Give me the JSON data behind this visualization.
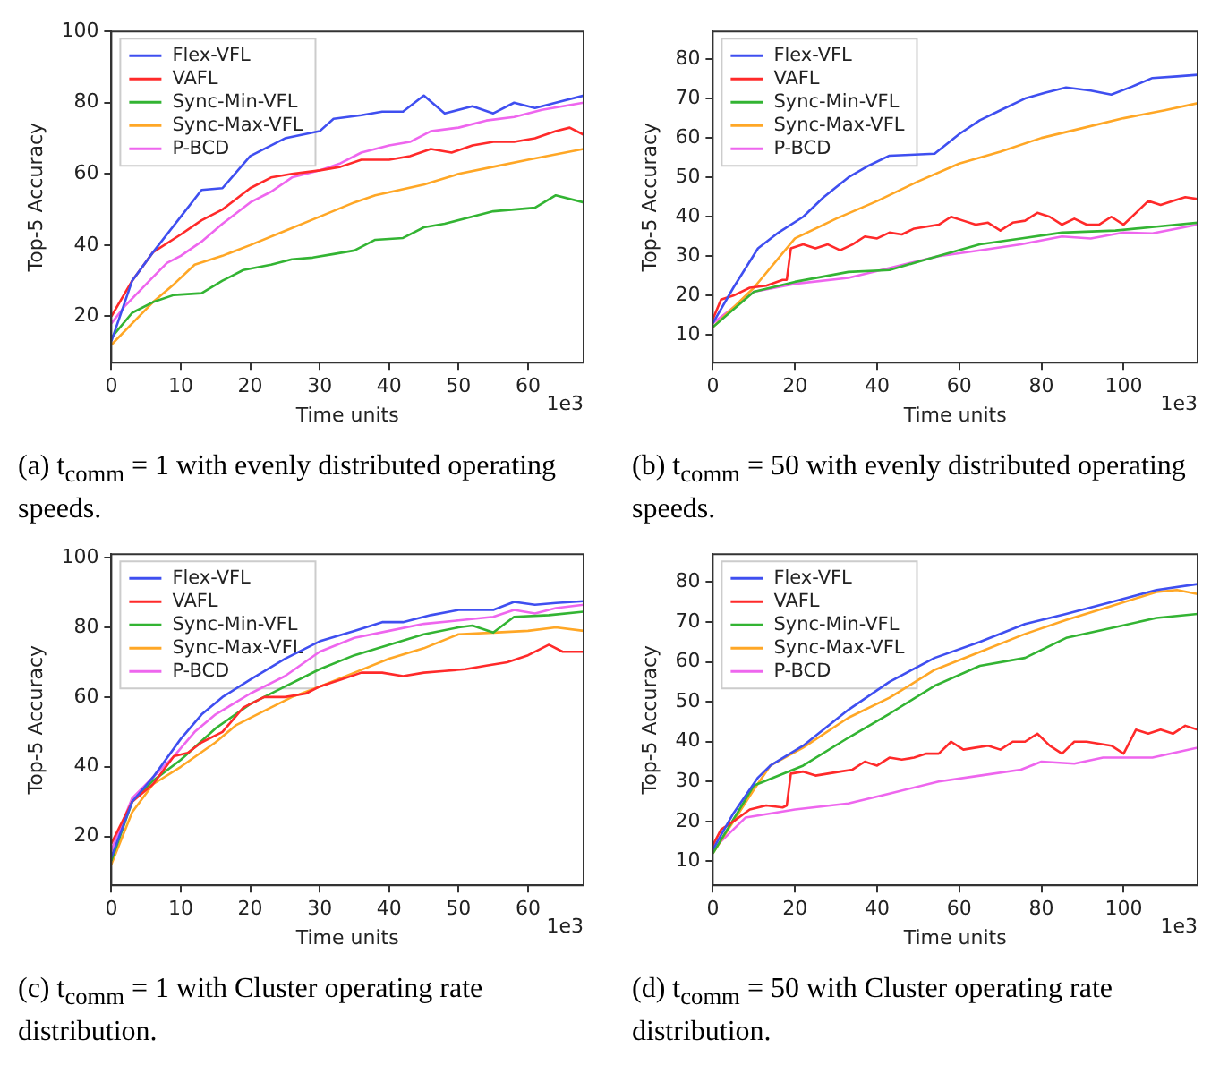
{
  "chart_data": [
    {
      "type": "line",
      "xlabel": "Time units",
      "ylabel": "Top-5 Accuracy",
      "annotations": [
        "1e3",
        "(a) t$_{comm}$ = 1 with evenly distributed operating speeds."
      ],
      "xlim": [
        0,
        68
      ],
      "xticks": [
        0,
        10,
        20,
        30,
        40,
        50,
        60
      ],
      "ylim": [
        7,
        100
      ],
      "yticks": [
        20,
        40,
        60,
        80,
        100
      ],
      "legend": "top left",
      "grid": false,
      "series": [
        {
          "name": "Flex-VFL",
          "color": "#3f4ff0",
          "x": [
            0,
            3,
            6,
            10,
            13,
            16,
            20,
            25,
            30,
            32,
            36,
            39,
            42,
            45,
            48,
            52,
            55,
            58,
            61,
            64,
            68
          ],
          "values": [
            13,
            30,
            38,
            48,
            55.5,
            56,
            65,
            70,
            72,
            75.5,
            76.5,
            77.5,
            77.5,
            82,
            77,
            79,
            77,
            80,
            78.5,
            80,
            82
          ]
        },
        {
          "name": "VAFL",
          "color": "#ff2a2a",
          "x": [
            0,
            3,
            6,
            10,
            13,
            16,
            20,
            23,
            26,
            30,
            33,
            36,
            40,
            43,
            46,
            49,
            52,
            55,
            58,
            61,
            64,
            66,
            68
          ],
          "values": [
            20,
            30,
            38,
            43,
            47,
            50,
            56,
            59,
            60,
            61,
            62,
            64,
            64,
            65,
            67,
            66,
            68,
            69,
            69,
            70,
            72,
            73,
            71
          ]
        },
        {
          "name": "Sync-Min-VFL",
          "color": "#33b433",
          "x": [
            0,
            3,
            6,
            9,
            13,
            16,
            19,
            23,
            26,
            29,
            32,
            35,
            38,
            42,
            45,
            48,
            51,
            55,
            58,
            61,
            64,
            68
          ],
          "values": [
            14,
            21,
            24,
            26,
            26.5,
            30,
            33,
            34.5,
            36,
            36.5,
            37.5,
            38.5,
            41.5,
            42,
            45,
            46,
            47.5,
            49.5,
            50,
            50.5,
            54,
            52
          ]
        },
        {
          "name": "Sync-Max-VFL",
          "color": "#ffa726",
          "x": [
            0,
            3,
            6,
            9,
            12,
            16,
            20,
            25,
            30,
            35,
            38,
            45,
            50,
            55,
            60,
            68
          ],
          "values": [
            12,
            18,
            24,
            29,
            34.5,
            37,
            40,
            44,
            48,
            52,
            54,
            57,
            60,
            62,
            64,
            67
          ]
        },
        {
          "name": "P-BCD",
          "color": "#ee66ee",
          "x": [
            0,
            2,
            4,
            6,
            8,
            10,
            13,
            16,
            20,
            23,
            26,
            30,
            33,
            36,
            40,
            43,
            46,
            50,
            54,
            58,
            62,
            65,
            68
          ],
          "values": [
            18,
            23,
            27,
            31,
            35,
            37,
            41,
            46,
            52,
            55,
            59,
            61,
            63,
            66,
            68,
            69,
            72,
            73,
            75,
            76,
            78,
            79,
            80
          ]
        }
      ]
    },
    {
      "type": "line",
      "xlabel": "Time units",
      "ylabel": "Top-5 Accuracy",
      "annotations": [
        "1e3",
        "(b) t$_{comm}$ = 50 with evenly distributed operating speeds."
      ],
      "xlim": [
        0,
        118
      ],
      "xticks": [
        0,
        20,
        40,
        60,
        80,
        100
      ],
      "ylim": [
        3,
        87
      ],
      "yticks": [
        10,
        20,
        30,
        40,
        50,
        60,
        70,
        80
      ],
      "legend": "top left",
      "grid": false,
      "series": [
        {
          "name": "Flex-VFL",
          "color": "#3f4ff0",
          "x": [
            0,
            5,
            11,
            16,
            22,
            27,
            33,
            38,
            43,
            48,
            54,
            60,
            65,
            70,
            76,
            81,
            86,
            92,
            97,
            102,
            107,
            113,
            118
          ],
          "values": [
            13,
            22,
            32,
            36,
            40,
            45,
            50,
            53,
            55.5,
            55.7,
            56,
            61,
            64.5,
            67,
            70,
            71.5,
            72.8,
            72,
            71,
            73,
            75.2,
            75.6,
            76
          ]
        },
        {
          "name": "VAFL",
          "color": "#ff2a2a",
          "x": [
            0,
            2,
            5,
            9,
            13,
            17,
            18,
            19,
            22,
            25,
            28,
            31,
            34,
            37,
            40,
            43,
            46,
            49,
            52,
            55,
            58,
            61,
            64,
            67,
            70,
            73,
            76,
            79,
            82,
            85,
            88,
            91,
            94,
            97,
            100,
            103,
            106,
            109,
            112,
            115,
            118
          ],
          "values": [
            14,
            19,
            20,
            22,
            22.5,
            24,
            24,
            32,
            33,
            32,
            33,
            31.5,
            33,
            35,
            34.5,
            36,
            35.5,
            37,
            37.5,
            38,
            40,
            39,
            38,
            38.5,
            36.5,
            38.5,
            39,
            41,
            40,
            38,
            39.5,
            38,
            38,
            40,
            38,
            41,
            44,
            43,
            44,
            45,
            44.5
          ]
        },
        {
          "name": "Sync-Min-VFL",
          "color": "#33b433",
          "x": [
            0,
            10,
            20,
            33,
            43,
            53,
            65,
            75,
            85,
            98,
            108,
            118
          ],
          "values": [
            12,
            21,
            23.5,
            26,
            26.5,
            29.5,
            33,
            34.5,
            36,
            36.5,
            37.5,
            38.5
          ]
        },
        {
          "name": "Sync-Max-VFL",
          "color": "#ffa726",
          "x": [
            0,
            10,
            20,
            30,
            40,
            50,
            60,
            70,
            80,
            90,
            100,
            110,
            118
          ],
          "values": [
            12,
            22,
            34.5,
            39.5,
            44,
            49,
            53.5,
            56.5,
            60,
            62.5,
            65,
            67,
            68.8
          ]
        },
        {
          "name": "P-BCD",
          "color": "#ee66ee",
          "x": [
            0,
            10,
            20,
            33,
            43,
            55,
            65,
            75,
            85,
            92,
            100,
            107,
            118
          ],
          "values": [
            13,
            21,
            23,
            24.5,
            27,
            30,
            31.5,
            33,
            35,
            34.5,
            36,
            35.8,
            38
          ]
        }
      ]
    },
    {
      "type": "line",
      "xlabel": "Time units",
      "ylabel": "Top-5 Accuracy",
      "annotations": [
        "1e3",
        "(c) t$_{comm}$ = 1 with Cluster operating rate distribution."
      ],
      "xlim": [
        0,
        68
      ],
      "xticks": [
        0,
        10,
        20,
        30,
        40,
        50,
        60
      ],
      "ylim": [
        6,
        101
      ],
      "yticks": [
        20,
        40,
        60,
        80,
        100
      ],
      "legend": "top left",
      "grid": false,
      "series": [
        {
          "name": "Flex-VFL",
          "color": "#3f4ff0",
          "x": [
            0,
            3,
            6,
            10,
            13,
            16,
            20,
            25,
            30,
            35,
            39,
            42,
            46,
            50,
            55,
            58,
            61,
            64,
            68
          ],
          "values": [
            14,
            30,
            37,
            48,
            55,
            60,
            65,
            71,
            76,
            79,
            81.5,
            81.5,
            83.5,
            85,
            85,
            87.3,
            86.5,
            87,
            87.5
          ]
        },
        {
          "name": "VAFL",
          "color": "#ff2a2a",
          "x": [
            0,
            3,
            6,
            9,
            11,
            13,
            16,
            19,
            22,
            25,
            28,
            30,
            33,
            36,
            39,
            42,
            45,
            48,
            51,
            54,
            57,
            60,
            63,
            65,
            68
          ],
          "values": [
            18,
            30,
            35,
            43,
            44,
            47,
            50,
            57,
            60,
            60,
            61,
            63,
            65,
            67,
            67,
            66,
            67,
            67.5,
            68,
            69,
            70,
            72,
            75,
            73,
            73
          ]
        },
        {
          "name": "Sync-Min-VFL",
          "color": "#33b433",
          "x": [
            0,
            3,
            6,
            10,
            15,
            20,
            25,
            30,
            35,
            40,
            45,
            50,
            52,
            55,
            58,
            63,
            68
          ],
          "values": [
            13,
            30,
            36,
            42,
            51,
            58,
            63,
            68,
            72,
            75,
            78,
            80,
            80.5,
            78.5,
            83,
            83.5,
            84.5
          ]
        },
        {
          "name": "Sync-Max-VFL",
          "color": "#ffa726",
          "x": [
            0,
            3,
            6,
            10,
            15,
            18,
            22,
            26,
            30,
            35,
            40,
            45,
            50,
            55,
            60,
            64,
            68
          ],
          "values": [
            12,
            27,
            35,
            40,
            47,
            52,
            56,
            60,
            63,
            67,
            71,
            74,
            78,
            78.5,
            79,
            80,
            79
          ]
        },
        {
          "name": "P-BCD",
          "color": "#ee66ee",
          "x": [
            0,
            3,
            6,
            9,
            12,
            15,
            20,
            25,
            30,
            35,
            40,
            45,
            50,
            55,
            58,
            61,
            64,
            68
          ],
          "values": [
            16,
            31,
            37,
            43,
            50,
            55,
            61,
            66,
            73,
            77,
            79,
            81,
            82,
            83,
            85,
            84,
            85.5,
            86.5
          ]
        }
      ]
    },
    {
      "type": "line",
      "xlabel": "Time units",
      "ylabel": "Top-5 Accuracy",
      "annotations": [
        "1e3",
        "(d) t$_{comm}$ = 50 with Cluster operating rate distribution."
      ],
      "xlim": [
        0,
        118
      ],
      "xticks": [
        0,
        20,
        40,
        60,
        80,
        100
      ],
      "ylim": [
        4,
        87
      ],
      "yticks": [
        10,
        20,
        30,
        40,
        50,
        60,
        70,
        80
      ],
      "legend": "top left",
      "grid": false,
      "series": [
        {
          "name": "Flex-VFL",
          "color": "#3f4ff0",
          "x": [
            0,
            5,
            11,
            14,
            22,
            33,
            43,
            54,
            65,
            76,
            86,
            97,
            108,
            118
          ],
          "values": [
            13,
            22,
            31,
            34,
            39,
            48,
            55,
            61,
            65,
            69.5,
            72,
            75,
            78,
            79.5
          ]
        },
        {
          "name": "VAFL",
          "color": "#ff2a2a",
          "x": [
            0,
            2,
            5,
            9,
            13,
            17,
            18,
            19,
            22,
            25,
            28,
            31,
            34,
            37,
            40,
            43,
            46,
            49,
            52,
            55,
            58,
            61,
            64,
            67,
            70,
            73,
            76,
            79,
            82,
            85,
            88,
            91,
            94,
            97,
            100,
            103,
            106,
            109,
            112,
            115,
            118
          ],
          "values": [
            14,
            18,
            20,
            23,
            24,
            23.5,
            24,
            32,
            32.5,
            31.5,
            32,
            32.5,
            33,
            35,
            34,
            36,
            35.5,
            36,
            37,
            37,
            40,
            38,
            38.5,
            39,
            38,
            40,
            40,
            42,
            39,
            37,
            40,
            40,
            39.5,
            39,
            37,
            43,
            42,
            43,
            42,
            44,
            43
          ]
        },
        {
          "name": "Sync-Min-VFL",
          "color": "#33b433",
          "x": [
            0,
            10,
            22,
            33,
            43,
            54,
            65,
            76,
            86,
            97,
            108,
            118
          ],
          "values": [
            12,
            29,
            34,
            41,
            47,
            54,
            59,
            61,
            66,
            68.5,
            71,
            72
          ]
        },
        {
          "name": "Sync-Max-VFL",
          "color": "#ffa726",
          "x": [
            0,
            10,
            14,
            22,
            33,
            43,
            54,
            65,
            76,
            86,
            97,
            108,
            113,
            118
          ],
          "values": [
            12,
            28,
            34,
            38.5,
            46,
            51,
            58,
            62.5,
            67,
            70.5,
            74,
            77.5,
            78,
            77
          ]
        },
        {
          "name": "P-BCD",
          "color": "#ee66ee",
          "x": [
            0,
            8,
            20,
            33,
            43,
            55,
            65,
            75,
            80,
            88,
            95,
            107,
            118
          ],
          "values": [
            13,
            21,
            23,
            24.5,
            27,
            30,
            31.5,
            33,
            35,
            34.5,
            36,
            36,
            38.5
          ]
        }
      ]
    }
  ]
}
